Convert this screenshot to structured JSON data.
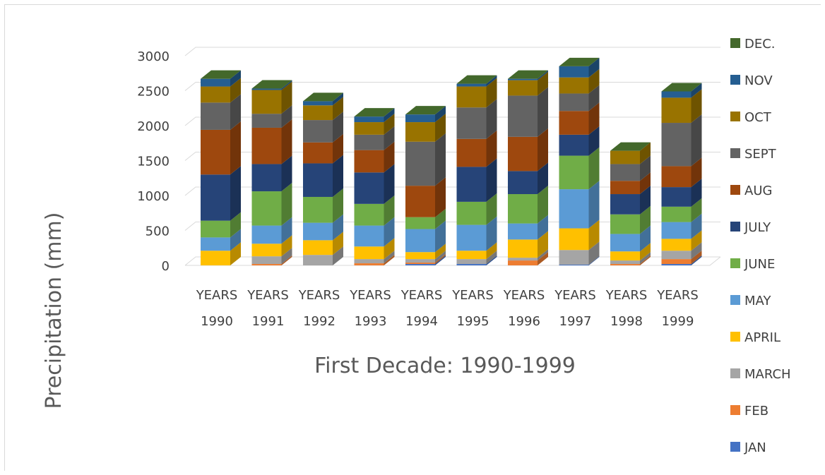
{
  "chart_data": {
    "type": "bar",
    "stacked": true,
    "three_d": true,
    "title": "",
    "xlabel": "First Decade: 1990-1999",
    "ylabel": "Precipitation (mm)",
    "ylim": [
      0,
      3000
    ],
    "yticks": [
      0,
      500,
      1000,
      1500,
      2000,
      2500,
      3000
    ],
    "grid": true,
    "legend_position": "right",
    "categories": [
      [
        "YEARS",
        "1990"
      ],
      [
        "YEARS",
        "1991"
      ],
      [
        "YEARS",
        "1992"
      ],
      [
        "YEARS",
        "1993"
      ],
      [
        "YEARS",
        "1994"
      ],
      [
        "YEARS",
        "1995"
      ],
      [
        "YEARS",
        "1996"
      ],
      [
        "YEARS",
        "1997"
      ],
      [
        "YEARS",
        "1998"
      ],
      [
        "YEARS",
        "1999"
      ]
    ],
    "series": [
      {
        "name": "JAN",
        "color": "#4472c4",
        "values": [
          0,
          0,
          0,
          0,
          20,
          20,
          0,
          10,
          0,
          20
        ]
      },
      {
        "name": "FEB",
        "color": "#ed7d31",
        "values": [
          0,
          20,
          0,
          30,
          20,
          0,
          70,
          0,
          20,
          70
        ]
      },
      {
        "name": "MARCH",
        "color": "#a5a5a5",
        "values": [
          0,
          110,
          150,
          60,
          50,
          70,
          40,
          210,
          50,
          120
        ]
      },
      {
        "name": "APRIL",
        "color": "#ffc000",
        "values": [
          210,
          180,
          210,
          180,
          100,
          120,
          260,
          310,
          130,
          170
        ]
      },
      {
        "name": "MAY",
        "color": "#5b9bd5",
        "values": [
          190,
          260,
          250,
          300,
          330,
          370,
          230,
          560,
          250,
          240
        ]
      },
      {
        "name": "JUNE",
        "color": "#70ad47",
        "values": [
          240,
          490,
          370,
          310,
          170,
          330,
          420,
          480,
          280,
          220
        ]
      },
      {
        "name": "JULY",
        "color": "#264478",
        "values": [
          660,
          390,
          480,
          450,
          0,
          500,
          330,
          300,
          290,
          280
        ]
      },
      {
        "name": "AUG",
        "color": "#9e480e",
        "values": [
          640,
          520,
          300,
          320,
          450,
          400,
          490,
          340,
          190,
          300
        ]
      },
      {
        "name": "SEPT",
        "color": "#636363",
        "values": [
          390,
          200,
          320,
          220,
          630,
          450,
          590,
          250,
          240,
          620
        ]
      },
      {
        "name": "OCT",
        "color": "#997300",
        "values": [
          230,
          340,
          210,
          180,
          280,
          300,
          220,
          230,
          190,
          360
        ]
      },
      {
        "name": "NOV",
        "color": "#255e91",
        "values": [
          110,
          20,
          60,
          80,
          110,
          40,
          20,
          160,
          0,
          90
        ]
      },
      {
        "name": "DEC",
        "label": "DEC.",
        "color": "#43682b",
        "values": [
          0,
          0,
          0,
          0,
          0,
          0,
          0,
          0,
          0,
          0
        ]
      }
    ]
  }
}
